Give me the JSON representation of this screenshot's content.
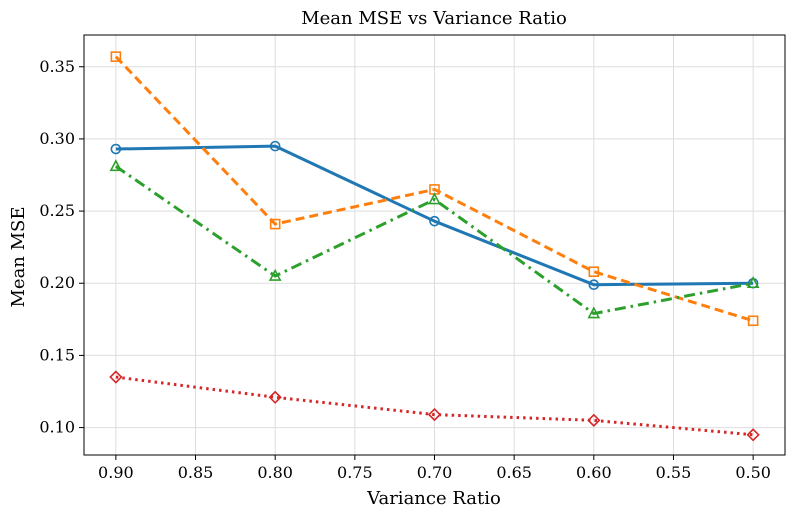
{
  "chart_data": {
    "type": "line",
    "title": "Mean MSE vs Variance Ratio",
    "xlabel": "Variance Ratio",
    "ylabel": "Mean MSE",
    "x": [
      0.9,
      0.8,
      0.7,
      0.6,
      0.5
    ],
    "xlim": [
      0.92,
      0.48
    ],
    "ylim": [
      0.081,
      0.372
    ],
    "x_inverted": true,
    "xticks": [
      "0.90",
      "0.85",
      "0.80",
      "0.75",
      "0.70",
      "0.65",
      "0.60",
      "0.55",
      "0.50"
    ],
    "yticks": [
      "0.10",
      "0.15",
      "0.20",
      "0.25",
      "0.30",
      "0.35"
    ],
    "grid": true,
    "series": [
      {
        "values": [
          0.293,
          0.295,
          0.243,
          0.199,
          0.2
        ],
        "color": "#1f77b4",
        "linestyle": "solid",
        "marker": "circle"
      },
      {
        "values": [
          0.357,
          0.241,
          0.265,
          0.208,
          0.174
        ],
        "color": "#ff7f0e",
        "linestyle": "dashed",
        "marker": "square"
      },
      {
        "values": [
          0.281,
          0.205,
          0.258,
          0.179,
          0.2
        ],
        "color": "#2ca02c",
        "linestyle": "dashdot",
        "marker": "triangle"
      },
      {
        "values": [
          0.135,
          0.121,
          0.109,
          0.105,
          0.095
        ],
        "color": "#d62728",
        "linestyle": "dotted",
        "marker": "diamond"
      }
    ]
  }
}
